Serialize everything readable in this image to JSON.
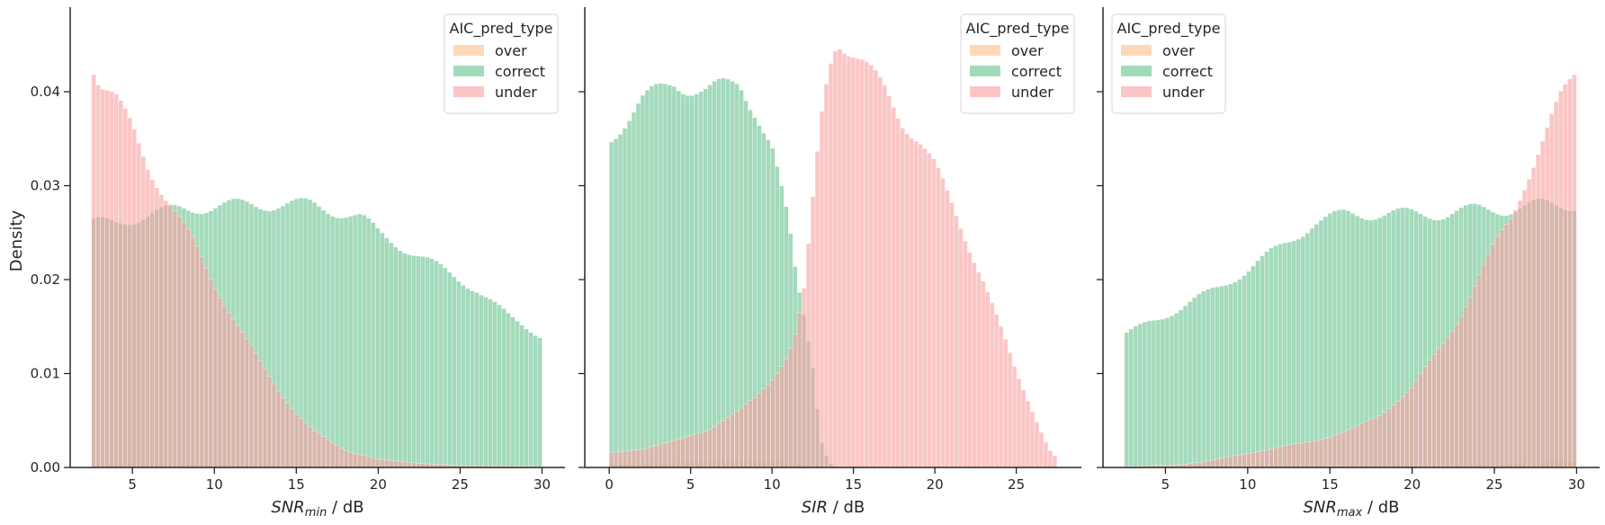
{
  "figure": {
    "ylabel": "Density",
    "legend_title": "AIC_pred_type",
    "legend_entries": [
      "over",
      "correct",
      "under"
    ],
    "colors": {
      "over": "#fdc08a",
      "correct": "#66c28e",
      "under": "#f8a0a0"
    }
  },
  "chart_data": [
    {
      "type": "histogram",
      "xlabel_main": "SNR",
      "xlabel_sub": "min",
      "xlabel_unit": " / dB",
      "ylabel": "Density",
      "xlim": [
        1.2,
        31.4
      ],
      "ylim": [
        0,
        0.049
      ],
      "xticks": [
        5,
        10,
        15,
        20,
        25,
        30
      ],
      "yticks": [
        "0.00",
        "0.01",
        "0.02",
        "0.03",
        "0.04"
      ],
      "bin_range": [
        2.5,
        30
      ],
      "legend_position": "top-right",
      "series": [
        {
          "name": "over",
          "points": [
            [
              2.5,
              0.0002
            ],
            [
              10,
              0.0003
            ],
            [
              20,
              0.0001
            ],
            [
              30,
              0.0001
            ]
          ]
        },
        {
          "name": "correct",
          "points": [
            [
              2.5,
              0.026
            ],
            [
              4,
              0.026
            ],
            [
              6,
              0.027
            ],
            [
              8,
              0.0275
            ],
            [
              10,
              0.0278
            ],
            [
              12,
              0.028
            ],
            [
              14,
              0.028
            ],
            [
              16,
              0.028
            ],
            [
              17,
              0.0275
            ],
            [
              18,
              0.027
            ],
            [
              19,
              0.0265
            ],
            [
              20,
              0.025
            ],
            [
              22,
              0.023
            ],
            [
              24,
              0.021
            ],
            [
              26,
              0.019
            ],
            [
              28,
              0.016
            ],
            [
              30,
              0.014
            ]
          ]
        },
        {
          "name": "under",
          "points": [
            [
              2.5,
              0.0435
            ],
            [
              3,
              0.041
            ],
            [
              4,
              0.039
            ],
            [
              5,
              0.036
            ],
            [
              6,
              0.032
            ],
            [
              7,
              0.029
            ],
            [
              8,
              0.026
            ],
            [
              9,
              0.023
            ],
            [
              10,
              0.0195
            ],
            [
              11,
              0.0165
            ],
            [
              12,
              0.0135
            ],
            [
              13,
              0.0105
            ],
            [
              14,
              0.008
            ],
            [
              15,
              0.0058
            ],
            [
              16,
              0.004
            ],
            [
              17,
              0.0028
            ],
            [
              18,
              0.0018
            ],
            [
              20,
              0.0009
            ],
            [
              22,
              0.0005
            ],
            [
              25,
              0.0002
            ],
            [
              30,
              0.0001
            ]
          ]
        }
      ]
    },
    {
      "type": "histogram",
      "xlabel_main": "SIR",
      "xlabel_sub": "",
      "xlabel_unit": " / dB",
      "ylabel": "",
      "xlim": [
        -1.5,
        29
      ],
      "ylim": [
        0,
        0.049
      ],
      "xticks": [
        0,
        5,
        10,
        15,
        20,
        25
      ],
      "yticks": [
        "",
        "",
        "",
        "",
        ""
      ],
      "bin_range": [
        0,
        27.5
      ],
      "legend_position": "top-right",
      "series": [
        {
          "name": "over",
          "points": [
            [
              0,
              0.0003
            ],
            [
              5,
              0.0005
            ],
            [
              10,
              0.0006
            ],
            [
              12,
              0.0003
            ],
            [
              13,
              0.0001
            ],
            [
              20,
              0.0001
            ]
          ]
        },
        {
          "name": "correct",
          "points": [
            [
              0,
              0.035
            ],
            [
              1,
              0.037
            ],
            [
              2,
              0.039
            ],
            [
              3,
              0.04
            ],
            [
              4,
              0.041
            ],
            [
              5,
              0.0405
            ],
            [
              6,
              0.04
            ],
            [
              7,
              0.0405
            ],
            [
              8,
              0.041
            ],
            [
              9,
              0.038
            ],
            [
              9.5,
              0.036
            ],
            [
              10,
              0.034
            ],
            [
              10.5,
              0.03
            ],
            [
              11,
              0.026
            ],
            [
              11.5,
              0.02
            ],
            [
              12,
              0.016
            ],
            [
              12.5,
              0.011
            ],
            [
              13,
              0.003
            ],
            [
              13.5,
              0.0005
            ],
            [
              14,
              0.0001
            ],
            [
              20,
              0.0001
            ]
          ]
        },
        {
          "name": "under",
          "points": [
            [
              0,
              0.0015
            ],
            [
              2,
              0.002
            ],
            [
              4,
              0.0028
            ],
            [
              6,
              0.004
            ],
            [
              8,
              0.006
            ],
            [
              9,
              0.0075
            ],
            [
              10,
              0.0095
            ],
            [
              11,
              0.012
            ],
            [
              11.5,
              0.0145
            ],
            [
              12,
              0.019
            ],
            [
              12.5,
              0.028
            ],
            [
              13,
              0.037
            ],
            [
              13.5,
              0.043
            ],
            [
              14,
              0.046
            ],
            [
              15,
              0.044
            ],
            [
              16,
              0.042
            ],
            [
              17,
              0.04
            ],
            [
              18,
              0.037
            ],
            [
              19,
              0.035
            ],
            [
              20,
              0.032
            ],
            [
              21,
              0.028
            ],
            [
              22,
              0.024
            ],
            [
              23,
              0.02
            ],
            [
              24,
              0.015
            ],
            [
              25,
              0.01
            ],
            [
              26,
              0.006
            ],
            [
              27,
              0.002
            ],
            [
              27.5,
              0.001
            ]
          ]
        }
      ]
    },
    {
      "type": "histogram",
      "xlabel_main": "SNR",
      "xlabel_sub": "max",
      "xlabel_unit": " / dB",
      "ylabel": "",
      "xlim": [
        1.2,
        31.4
      ],
      "ylim": [
        0,
        0.049
      ],
      "xticks": [
        5,
        10,
        15,
        20,
        25,
        30
      ],
      "yticks": [
        "",
        "",
        "",
        "",
        ""
      ],
      "bin_range": [
        2.5,
        30
      ],
      "legend_position": "top-left",
      "series": [
        {
          "name": "over",
          "points": [
            [
              2.5,
              0.0001
            ],
            [
              20,
              0.0001
            ],
            [
              25,
              0.0003
            ],
            [
              28,
              0.0005
            ],
            [
              30,
              0.0006
            ]
          ]
        },
        {
          "name": "correct",
          "points": [
            [
              2.5,
              0.014
            ],
            [
              4,
              0.0155
            ],
            [
              6,
              0.017
            ],
            [
              8,
              0.019
            ],
            [
              10,
              0.021
            ],
            [
              12,
              0.0235
            ],
            [
              14,
              0.026
            ],
            [
              16,
              0.027
            ],
            [
              18,
              0.027
            ],
            [
              20,
              0.027
            ],
            [
              22,
              0.027
            ],
            [
              24,
              0.0275
            ],
            [
              26,
              0.0275
            ],
            [
              28,
              0.028
            ],
            [
              30,
              0.028
            ]
          ]
        },
        {
          "name": "under",
          "points": [
            [
              2.5,
              0.0001
            ],
            [
              6,
              0.0003
            ],
            [
              8,
              0.0008
            ],
            [
              10,
              0.0015
            ],
            [
              12,
              0.0022
            ],
            [
              14,
              0.0028
            ],
            [
              16,
              0.0038
            ],
            [
              18,
              0.0055
            ],
            [
              19,
              0.007
            ],
            [
              20,
              0.0085
            ],
            [
              21,
              0.011
            ],
            [
              22,
              0.0135
            ],
            [
              23,
              0.0165
            ],
            [
              24,
              0.02
            ],
            [
              25,
              0.0235
            ],
            [
              26,
              0.0265
            ],
            [
              27,
              0.031
            ],
            [
              28,
              0.035
            ],
            [
              29,
              0.039
            ],
            [
              30,
              0.042
            ]
          ]
        }
      ]
    }
  ]
}
